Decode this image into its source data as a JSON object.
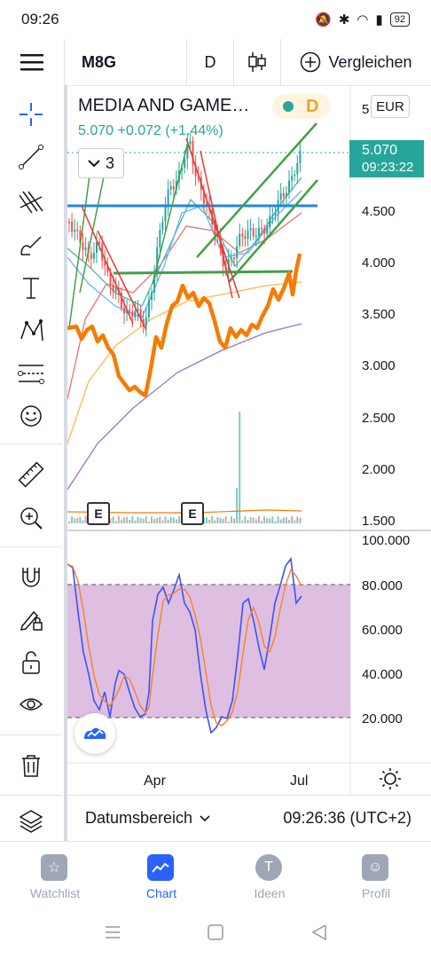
{
  "status_bar": {
    "time": "09:26",
    "battery": "92"
  },
  "toolbar": {
    "symbol": "M8G",
    "interval": "D",
    "compare_label": "Vergleichen"
  },
  "legend": {
    "title": "MEDIA AND GAME…",
    "price": "5.070",
    "change": "+0.072",
    "change_pct": "(+1.44%)",
    "badge": "D",
    "indicators_count": "3"
  },
  "currency": "EUR",
  "last_price_tag": {
    "price": "5.070",
    "countdown": "09:23:22"
  },
  "price_axis": {
    "top_partial": "5",
    "labels": [
      "4.500",
      "4.000",
      "3.500",
      "3.000",
      "2.500",
      "2.000",
      "1.500"
    ]
  },
  "oscillator_axis": {
    "labels": [
      "100.000",
      "80.000",
      "60.000",
      "40.000",
      "20.000"
    ]
  },
  "earnings_markers": [
    "E",
    "E"
  ],
  "time_axis": {
    "labels": [
      "Apr",
      "Jul"
    ]
  },
  "bottom_bar": {
    "date_range_label": "Datumsbereich",
    "clock": "09:26:36 (UTC+2)"
  },
  "tabs": [
    {
      "label": "Watchlist",
      "icon": "star-icon"
    },
    {
      "label": "Chart",
      "icon": "chart-icon"
    },
    {
      "label": "Ideen",
      "icon": "bulb-icon"
    },
    {
      "label": "Profil",
      "icon": "smiley-icon"
    }
  ],
  "colors": {
    "accent": "#2962ff",
    "up": "#26a69a",
    "down": "#ef5350",
    "trendline": "#43a047",
    "resistance": "#1e88e5",
    "orange": "#f57c00",
    "stoch_fill": "#d8b4dd"
  }
}
